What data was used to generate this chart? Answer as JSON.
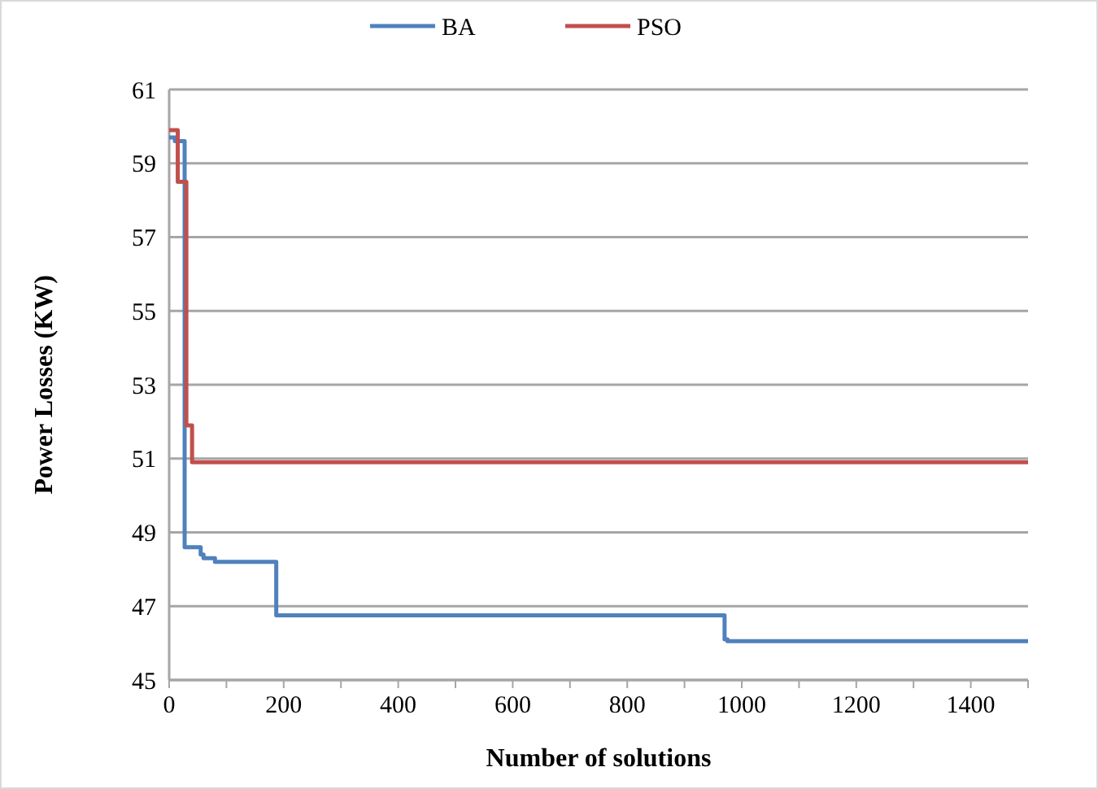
{
  "chart_data": {
    "type": "step",
    "xlabel": "Number of solutions",
    "ylabel": "Power Losses (KW)",
    "series": [
      {
        "name": "BA",
        "color": "#4f81bd",
        "x": [
          0,
          5,
          10,
          27,
          55,
          60,
          80,
          187,
          190,
          970,
          975,
          1500
        ],
        "values": [
          59.7,
          59.7,
          59.6,
          48.6,
          48.4,
          48.3,
          48.2,
          46.75,
          46.75,
          46.1,
          46.05,
          46.05
        ]
      },
      {
        "name": "PSO",
        "color": "#c0504d",
        "x": [
          0,
          15,
          30,
          40,
          1500
        ],
        "values": [
          59.9,
          58.5,
          51.9,
          50.9,
          50.9
        ]
      }
    ],
    "xlim": [
      0,
      1500
    ],
    "ylim": [
      45,
      61
    ],
    "xticks": [
      0,
      {
        "value": 100,
        "label": null
      },
      200,
      {
        "value": 300,
        "label": null
      },
      400,
      {
        "value": 500,
        "label": null
      },
      600,
      {
        "value": 700,
        "label": null
      },
      800,
      {
        "value": 900,
        "label": null
      },
      1000,
      {
        "value": 1100,
        "label": null
      },
      1200,
      {
        "value": 1300,
        "label": null
      },
      1400,
      {
        "value": 1500,
        "label": null
      }
    ],
    "yticks": [
      45,
      47,
      49,
      51,
      53,
      55,
      57,
      59,
      61
    ],
    "grid": "y",
    "legend": "top"
  }
}
